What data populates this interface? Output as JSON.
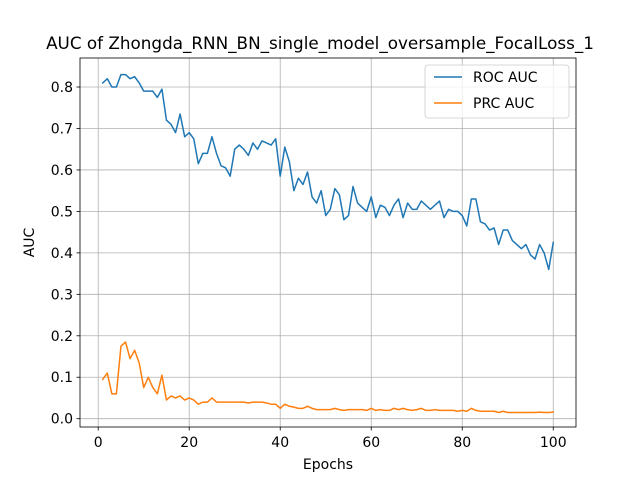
{
  "chart_data": {
    "type": "line",
    "title": "AUC of Zhongda_RNN_BN_single_model_oversample_FocalLoss_1",
    "xlabel": "Epochs",
    "ylabel": "AUC",
    "xlim": [
      -4,
      105
    ],
    "ylim": [
      -0.02,
      0.87
    ],
    "xticks": [
      0,
      20,
      40,
      60,
      80,
      100
    ],
    "yticks": [
      0.0,
      0.1,
      0.2,
      0.3,
      0.4,
      0.5,
      0.6,
      0.7,
      0.8
    ],
    "ytick_labels": [
      "0.0",
      "0.1",
      "0.2",
      "0.3",
      "0.4",
      "0.5",
      "0.6",
      "0.7",
      "0.8"
    ],
    "grid": true,
    "legend_position": "top-right",
    "x": [
      1,
      2,
      3,
      4,
      5,
      6,
      7,
      8,
      9,
      10,
      11,
      12,
      13,
      14,
      15,
      16,
      17,
      18,
      19,
      20,
      21,
      22,
      23,
      24,
      25,
      26,
      27,
      28,
      29,
      30,
      31,
      32,
      33,
      34,
      35,
      36,
      37,
      38,
      39,
      40,
      41,
      42,
      43,
      44,
      45,
      46,
      47,
      48,
      49,
      50,
      51,
      52,
      53,
      54,
      55,
      56,
      57,
      58,
      59,
      60,
      61,
      62,
      63,
      64,
      65,
      66,
      67,
      68,
      69,
      70,
      71,
      72,
      73,
      74,
      75,
      76,
      77,
      78,
      79,
      80,
      81,
      82,
      83,
      84,
      85,
      86,
      87,
      88,
      89,
      90,
      91,
      92,
      93,
      94,
      95,
      96,
      97,
      98,
      99,
      100
    ],
    "series": [
      {
        "name": "ROC AUC",
        "color": "#1f77b4",
        "values": [
          0.81,
          0.82,
          0.8,
          0.8,
          0.83,
          0.83,
          0.82,
          0.825,
          0.81,
          0.79,
          0.79,
          0.79,
          0.775,
          0.795,
          0.72,
          0.71,
          0.69,
          0.735,
          0.68,
          0.69,
          0.675,
          0.615,
          0.64,
          0.64,
          0.68,
          0.64,
          0.61,
          0.605,
          0.585,
          0.65,
          0.66,
          0.65,
          0.635,
          0.665,
          0.65,
          0.67,
          0.665,
          0.66,
          0.675,
          0.585,
          0.655,
          0.62,
          0.55,
          0.58,
          0.565,
          0.595,
          0.535,
          0.52,
          0.55,
          0.49,
          0.505,
          0.555,
          0.54,
          0.48,
          0.49,
          0.56,
          0.52,
          0.51,
          0.5,
          0.535,
          0.485,
          0.515,
          0.51,
          0.49,
          0.515,
          0.53,
          0.485,
          0.52,
          0.505,
          0.505,
          0.525,
          0.515,
          0.505,
          0.515,
          0.525,
          0.485,
          0.505,
          0.5,
          0.5,
          0.49,
          0.465,
          0.53,
          0.53,
          0.475,
          0.47,
          0.455,
          0.46,
          0.42,
          0.455,
          0.455,
          0.43,
          0.42,
          0.41,
          0.42,
          0.395,
          0.385,
          0.42,
          0.4,
          0.36,
          0.425
        ]
      },
      {
        "name": "PRC AUC",
        "color": "#ff7f0e",
        "values": [
          0.095,
          0.11,
          0.06,
          0.06,
          0.175,
          0.185,
          0.145,
          0.165,
          0.135,
          0.075,
          0.1,
          0.075,
          0.06,
          0.105,
          0.045,
          0.055,
          0.05,
          0.055,
          0.045,
          0.05,
          0.045,
          0.035,
          0.04,
          0.04,
          0.05,
          0.04,
          0.04,
          0.04,
          0.04,
          0.04,
          0.04,
          0.04,
          0.038,
          0.04,
          0.04,
          0.04,
          0.038,
          0.035,
          0.035,
          0.025,
          0.035,
          0.03,
          0.028,
          0.025,
          0.025,
          0.03,
          0.025,
          0.022,
          0.022,
          0.022,
          0.022,
          0.025,
          0.022,
          0.02,
          0.022,
          0.022,
          0.022,
          0.022,
          0.02,
          0.025,
          0.02,
          0.022,
          0.02,
          0.02,
          0.025,
          0.022,
          0.025,
          0.022,
          0.02,
          0.022,
          0.025,
          0.02,
          0.02,
          0.022,
          0.02,
          0.02,
          0.02,
          0.02,
          0.018,
          0.02,
          0.018,
          0.025,
          0.02,
          0.018,
          0.018,
          0.018,
          0.018,
          0.015,
          0.018,
          0.015,
          0.015,
          0.015,
          0.015,
          0.015,
          0.015,
          0.015,
          0.016,
          0.015,
          0.015,
          0.016
        ]
      }
    ]
  }
}
